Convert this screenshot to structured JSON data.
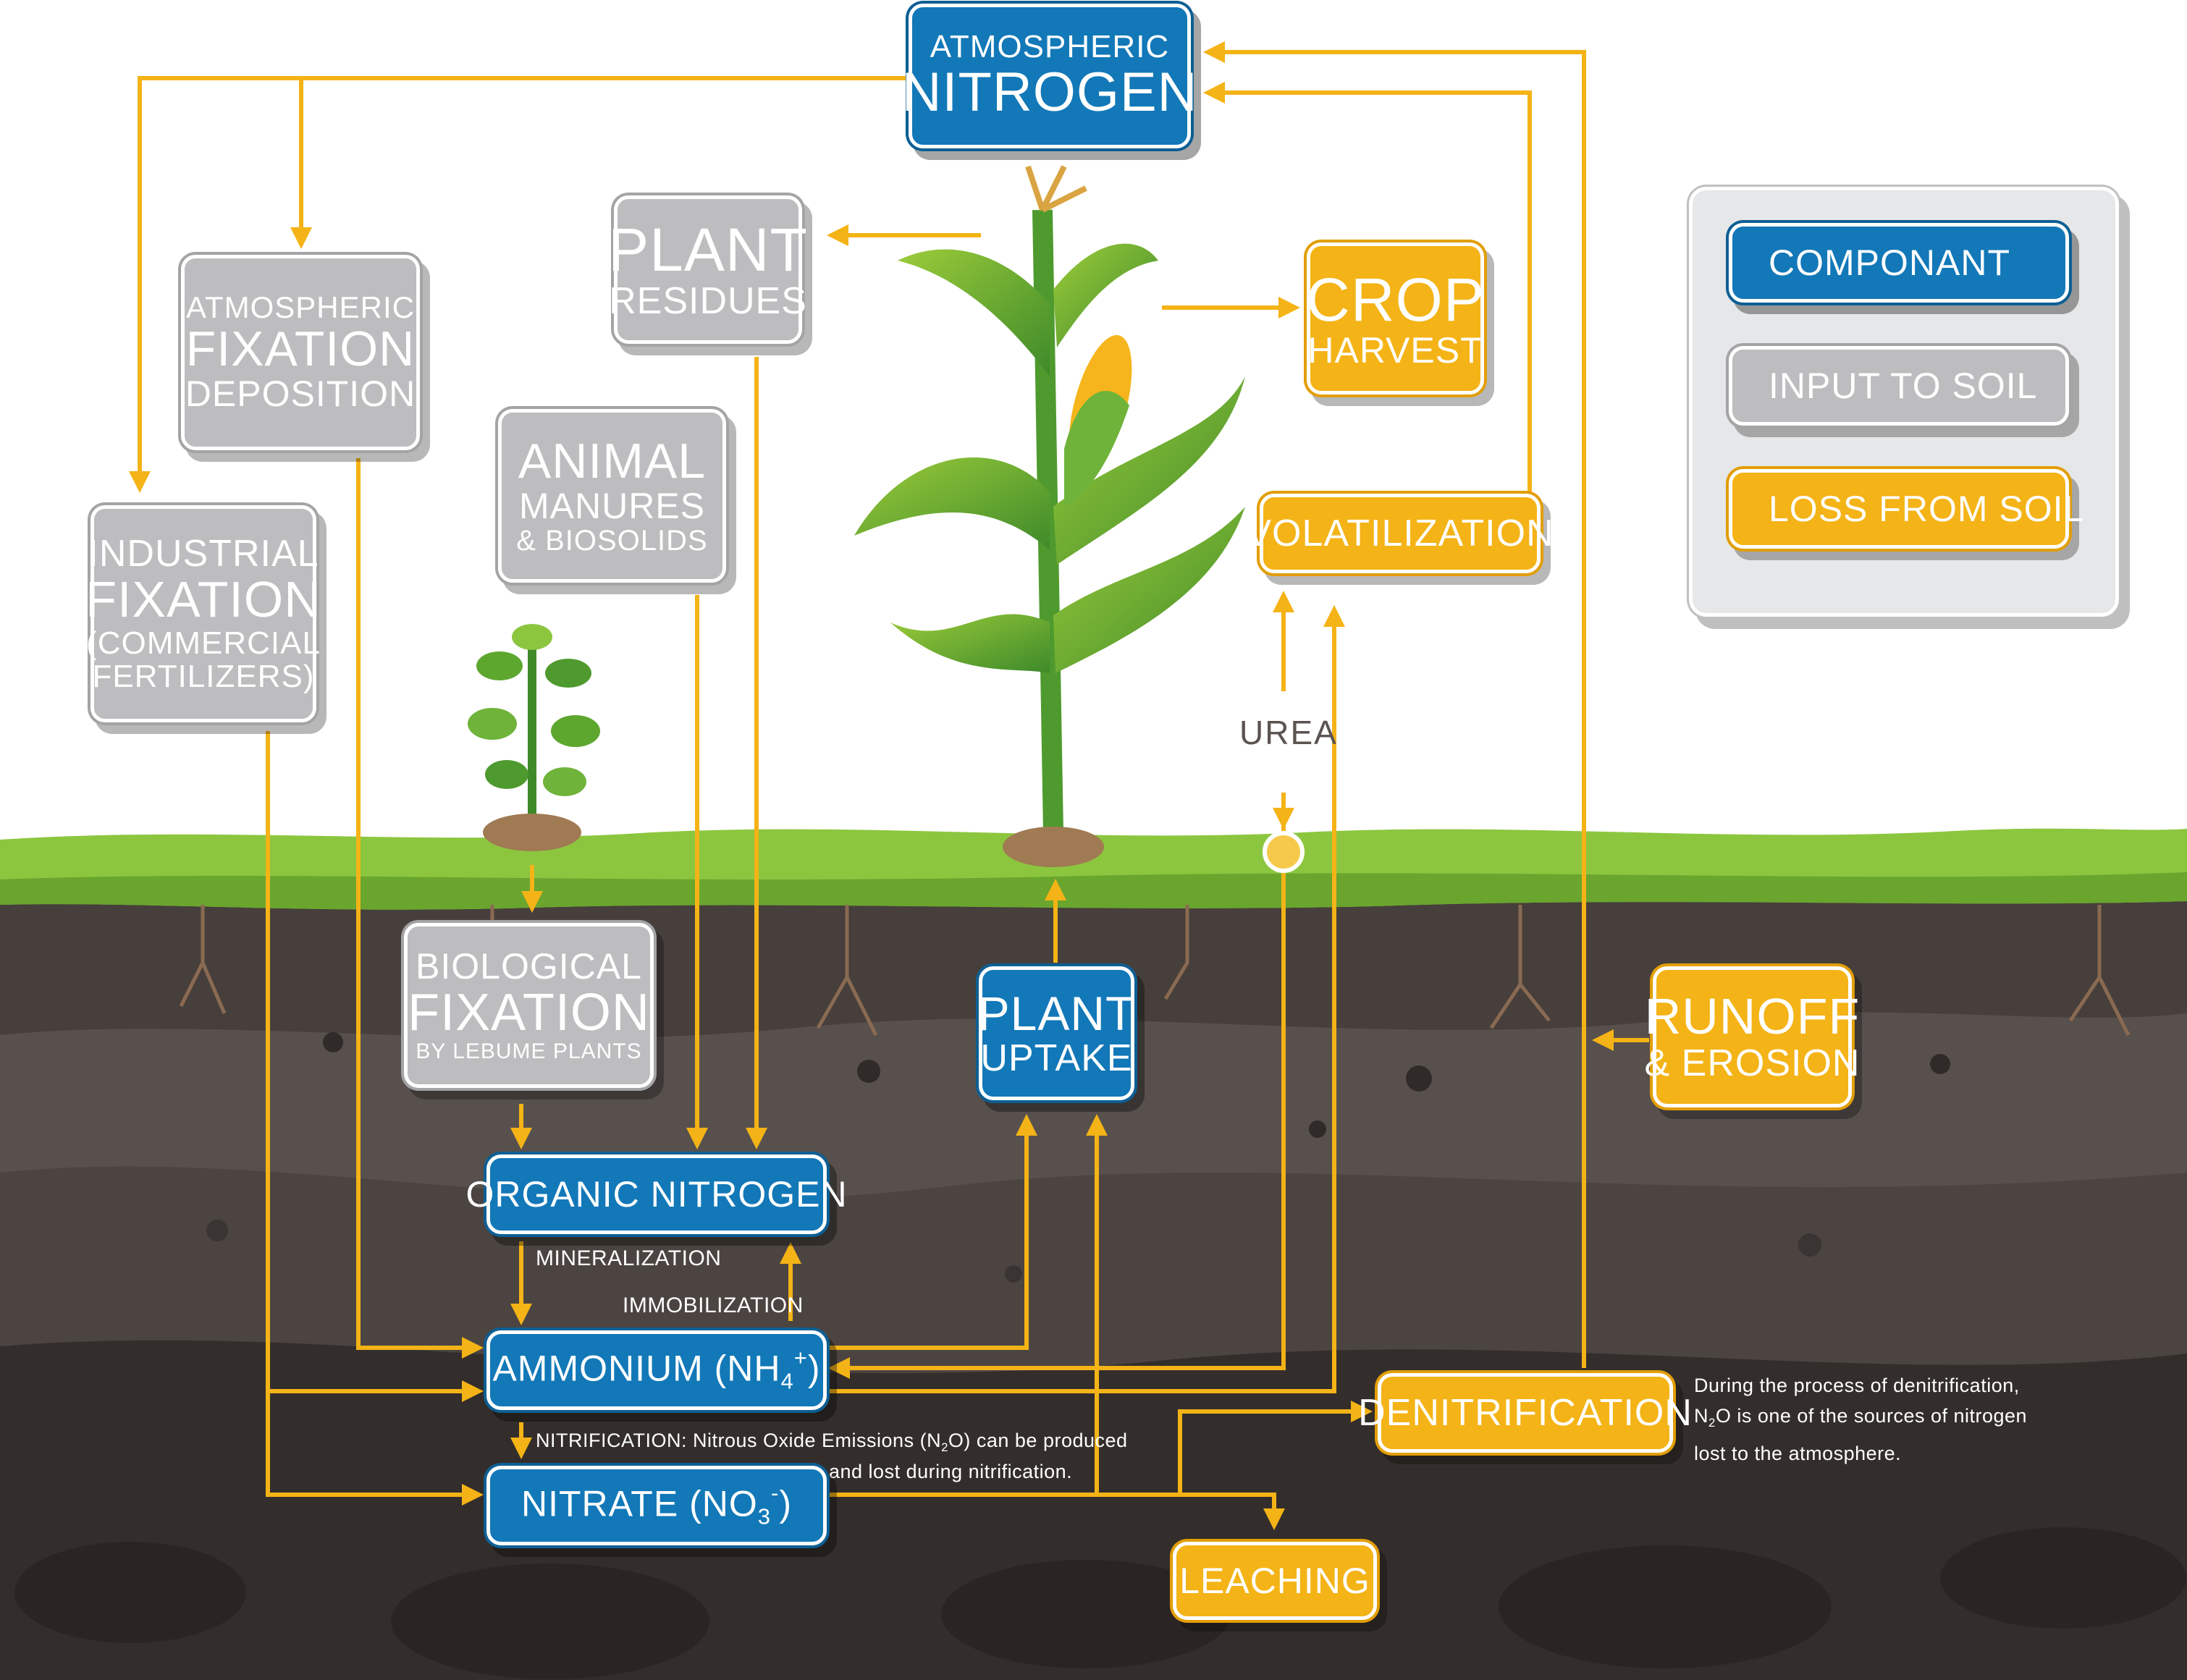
{
  "diagram": {
    "atmospheric_nitrogen": [
      "ATMOSPHERIC",
      "NITROGEN"
    ],
    "atmospheric_fixation": [
      "ATMOSPHERIC",
      "FIXATION",
      "DEPOSITION"
    ],
    "plant_residues": [
      "PLANT",
      "RESIDUES"
    ],
    "crop_harvest": [
      "CROP",
      "HARVEST"
    ],
    "animal_manures": [
      "ANIMAL",
      "MANURES",
      "& BIOSOLIDS"
    ],
    "industrial_fixation": [
      "INDUSTRIAL",
      "FIXATION",
      "(COMMERCIAL",
      "FERTILIZERS)"
    ],
    "volatilization": "VOLATILIZATION",
    "urea": "UREA",
    "biological_fixation": [
      "BIOLOGICAL",
      "FIXATION",
      "BY LEBUME PLANTS"
    ],
    "plant_uptake": [
      "PLANT",
      "UPTAKE"
    ],
    "runoff": [
      "RUNOFF",
      "& EROSION"
    ],
    "organic_nitrogen": "ORGANIC NITROGEN",
    "mineralization": "MINERALIZATION",
    "immobilization": "IMMOBILIZATION",
    "ammonium": {
      "prefix": "AMMONIUM (NH",
      "sub": "4",
      "sup": "+",
      "suffix": ")"
    },
    "nitrate": {
      "prefix": "NITRATE (NO",
      "sub": "3",
      "sup": "-",
      "suffix": ")"
    },
    "nitrification_note": {
      "l1_a": "NITRIFICATION: Nitrous Oxide Emissions (N",
      "l1_sub": "2",
      "l1_b": "O) can be produced",
      "l2": "and lost during nitrification."
    },
    "denitrification": "DENITRIFICATION",
    "denitrification_note": {
      "l1": "During the process of denitrification,",
      "l2_a": "N",
      "l2_sub": "2",
      "l2_b": "O is one of the sources of nitrogen",
      "l3": "lost to the atmosphere."
    },
    "leaching": "LEACHING"
  },
  "legend": {
    "componant": "COMPONANT",
    "input": "INPUT TO SOIL",
    "loss": "LOSS FROM SOIL"
  },
  "colors": {
    "component": "#1278b8",
    "input": "#bdbdbf",
    "loss": "#f4b316",
    "arrow": "#f4b316",
    "grass": "#8cc63f",
    "soil_top": "#3e3835",
    "soil_mid": "#5a5350",
    "soil_deep": "#2b2726"
  }
}
